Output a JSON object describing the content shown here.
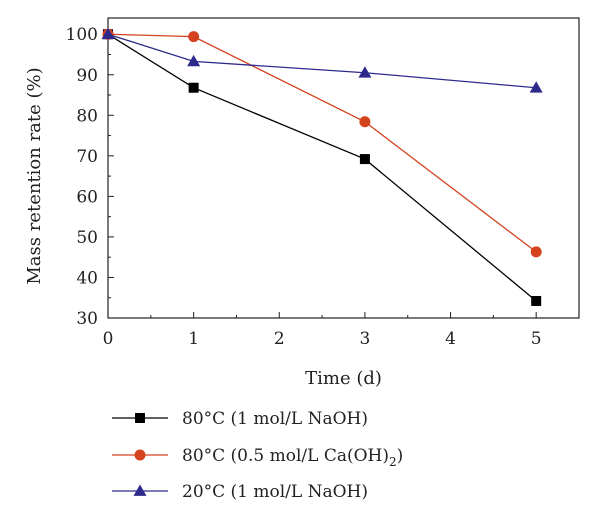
{
  "chart_data": {
    "type": "line",
    "xlabel": "Time (d)",
    "ylabel": "Mass retention rate (%)",
    "xlim": [
      0,
      5.5
    ],
    "ylim": [
      30,
      104
    ],
    "xticks": [
      0,
      1,
      2,
      3,
      4,
      5
    ],
    "yticks": [
      30,
      40,
      50,
      60,
      70,
      80,
      90,
      100
    ],
    "grid": false,
    "legend_position": "bottom-below",
    "series": [
      {
        "name": "80°C (1 mol/L NaOH)",
        "legend_main": "80°C (1 mol/L NaOH)",
        "marker": "square",
        "color": "#000000",
        "x": [
          0,
          1,
          3,
          5
        ],
        "y": [
          100,
          86.8,
          69.2,
          34.2
        ]
      },
      {
        "name": "80°C (0.5 mol/L Ca(OH)2)",
        "legend_main": "80°C (0.5 mol/L Ca(OH)",
        "legend_sub": "2",
        "legend_tail": ")",
        "marker": "circle",
        "color": "#d4421e",
        "x": [
          0,
          1,
          3,
          5
        ],
        "y": [
          100,
          99.4,
          78.4,
          46.3
        ]
      },
      {
        "name": "20°C (1 mol/L NaOH)",
        "legend_main": "20°C (1 mol/L NaOH)",
        "marker": "triangle",
        "color": "#2e2a8c",
        "x": [
          0,
          1,
          3,
          5
        ],
        "y": [
          100,
          93.3,
          90.5,
          86.8
        ]
      }
    ]
  }
}
